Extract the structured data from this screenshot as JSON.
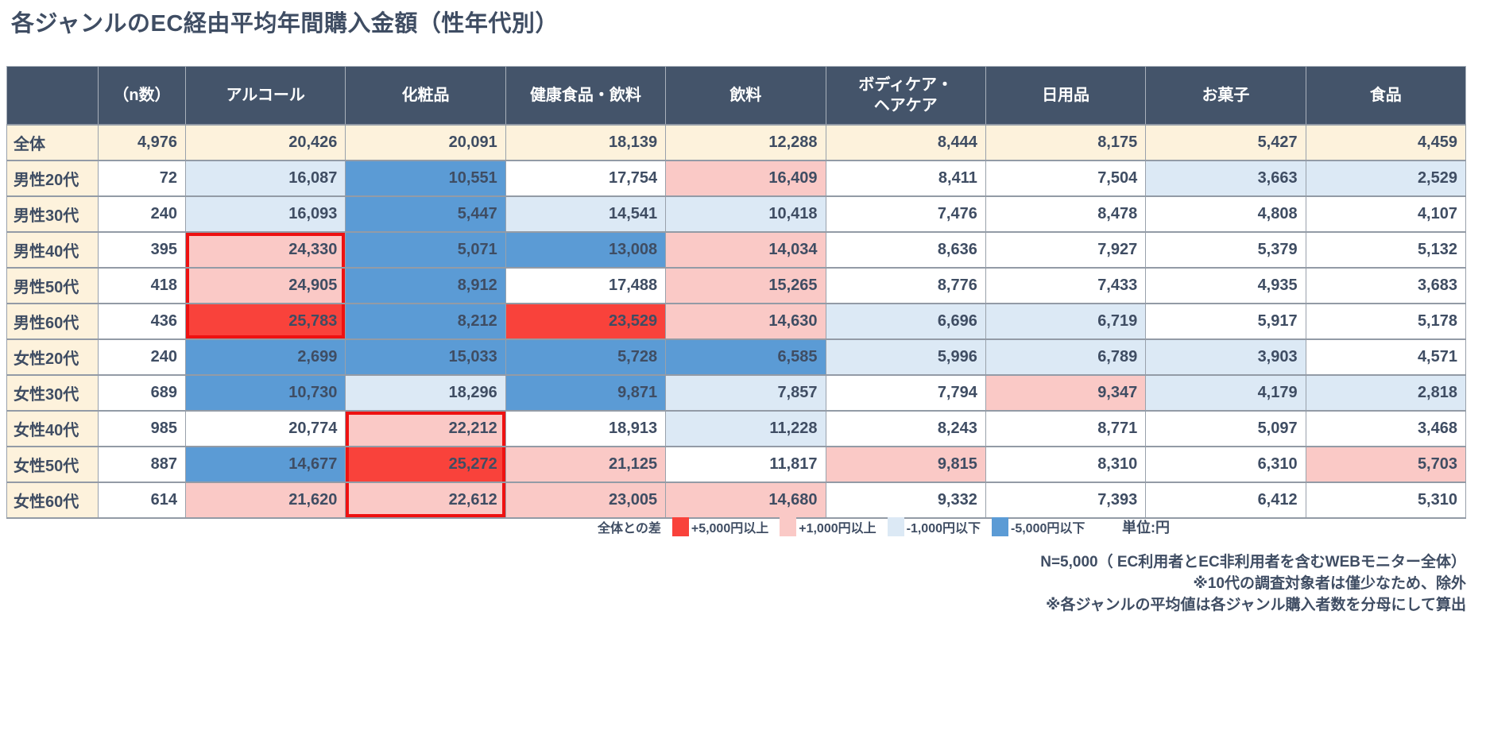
{
  "title": "各ジャンルのEC経由平均年間購入金額（性年代別）",
  "colors": {
    "header_bg": "#44546A",
    "header_text": "#FFFFFF",
    "total_row_bg": "#FDF2DC",
    "row_label_bg": "#FDF2DC",
    "red": "#F9423B",
    "pink": "#FAC9C6",
    "light_blue": "#DCE9F5",
    "blue": "#5B9BD5",
    "text": "#3F4D63",
    "highlight_border": "#EE1111"
  },
  "chart_data": {
    "type": "table",
    "title": "各ジャンルのEC経由平均年間購入金額（性年代別）",
    "unit": "円",
    "columns": [
      "",
      "（n数）",
      "アルコール",
      "化粧品",
      "健康食品・飲料",
      "飲料",
      "ボディケア・\nヘアケア",
      "日用品",
      "お菓子",
      "食品"
    ],
    "rows": [
      {
        "label": "全体",
        "cells": [
          "4,976",
          "20,426",
          "20,091",
          "18,139",
          "12,288",
          "8,444",
          "8,175",
          "5,427",
          "4,459"
        ],
        "bg": [
          "c",
          "c",
          "c",
          "c",
          "c",
          "c",
          "c",
          "c",
          "c"
        ]
      },
      {
        "label": "男性20代",
        "cells": [
          "72",
          "16,087",
          "10,551",
          "17,754",
          "16,409",
          "8,411",
          "7,504",
          "3,663",
          "2,529"
        ],
        "bg": [
          "w",
          "lb",
          "b",
          "w",
          "p",
          "w",
          "w",
          "lb",
          "lb"
        ]
      },
      {
        "label": "男性30代",
        "cells": [
          "240",
          "16,093",
          "5,447",
          "14,541",
          "10,418",
          "7,476",
          "8,478",
          "4,808",
          "4,107"
        ],
        "bg": [
          "w",
          "lb",
          "b",
          "lb",
          "lb",
          "w",
          "w",
          "w",
          "w"
        ]
      },
      {
        "label": "男性40代",
        "cells": [
          "395",
          "24,330",
          "5,071",
          "13,008",
          "14,034",
          "8,636",
          "7,927",
          "5,379",
          "5,132"
        ],
        "bg": [
          "w",
          "p",
          "b",
          "b",
          "p",
          "w",
          "w",
          "w",
          "w"
        ]
      },
      {
        "label": "男性50代",
        "cells": [
          "418",
          "24,905",
          "8,912",
          "17,488",
          "15,265",
          "8,776",
          "7,433",
          "4,935",
          "3,683"
        ],
        "bg": [
          "w",
          "p",
          "b",
          "w",
          "p",
          "w",
          "w",
          "w",
          "w"
        ]
      },
      {
        "label": "男性60代",
        "cells": [
          "436",
          "25,783",
          "8,212",
          "23,529",
          "14,630",
          "6,696",
          "6,719",
          "5,917",
          "5,178"
        ],
        "bg": [
          "w",
          "r",
          "b",
          "r",
          "p",
          "lb",
          "lb",
          "w",
          "w"
        ]
      },
      {
        "label": "女性20代",
        "cells": [
          "240",
          "2,699",
          "15,033",
          "5,728",
          "6,585",
          "5,996",
          "6,789",
          "3,903",
          "4,571"
        ],
        "bg": [
          "w",
          "b",
          "b",
          "b",
          "b",
          "lb",
          "lb",
          "lb",
          "w"
        ]
      },
      {
        "label": "女性30代",
        "cells": [
          "689",
          "10,730",
          "18,296",
          "9,871",
          "7,857",
          "7,794",
          "9,347",
          "4,179",
          "2,818"
        ],
        "bg": [
          "w",
          "b",
          "lb",
          "b",
          "lb",
          "w",
          "p",
          "lb",
          "lb"
        ]
      },
      {
        "label": "女性40代",
        "cells": [
          "985",
          "20,774",
          "22,212",
          "18,913",
          "11,228",
          "8,243",
          "8,771",
          "5,097",
          "3,468"
        ],
        "bg": [
          "w",
          "w",
          "p",
          "w",
          "lb",
          "w",
          "w",
          "w",
          "w"
        ]
      },
      {
        "label": "女性50代",
        "cells": [
          "887",
          "14,677",
          "25,272",
          "21,125",
          "11,817",
          "9,815",
          "8,310",
          "6,310",
          "5,703"
        ],
        "bg": [
          "w",
          "b",
          "r",
          "p",
          "w",
          "p",
          "w",
          "w",
          "p"
        ]
      },
      {
        "label": "女性60代",
        "cells": [
          "614",
          "21,620",
          "22,612",
          "23,005",
          "14,680",
          "9,332",
          "7,393",
          "6,412",
          "5,310"
        ],
        "bg": [
          "w",
          "p",
          "p",
          "p",
          "p",
          "w",
          "w",
          "w",
          "w"
        ]
      }
    ],
    "highlights": [
      {
        "column": "アルコール",
        "value_col": 1,
        "row_start": 3,
        "row_end": 5
      },
      {
        "column": "化粧品",
        "value_col": 2,
        "row_start": 8,
        "row_end": 10
      }
    ]
  },
  "legend": {
    "label": "全体との差",
    "items": [
      {
        "color_key": "red",
        "text": "+5,000円以上"
      },
      {
        "color_key": "pink",
        "text": "+1,000円以上"
      },
      {
        "color_key": "light_blue",
        "text": "-1,000円以下"
      },
      {
        "color_key": "blue",
        "text": "-5,000円以下"
      }
    ],
    "unit_label": "単位:円"
  },
  "footnotes": [
    "N=5,000（ EC利用者とEC非利用者を含むWEBモニター全体）",
    "※10代の調査対象者は僅少なため、除外",
    "※各ジャンルの平均値は各ジャンル購入者数を分母にして算出"
  ]
}
